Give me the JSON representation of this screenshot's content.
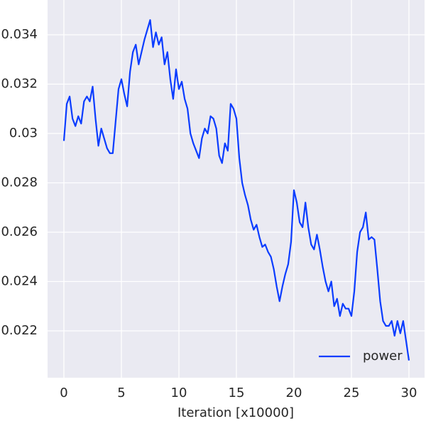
{
  "chart_data": {
    "type": "line",
    "xlabel": "Iteration [x10000]",
    "x": [
      0,
      0.25,
      0.5,
      0.75,
      1,
      1.25,
      1.5,
      1.75,
      2,
      2.25,
      2.5,
      2.75,
      3,
      3.25,
      3.5,
      3.75,
      4,
      4.25,
      4.5,
      4.75,
      5,
      5.25,
      5.5,
      5.75,
      6,
      6.25,
      6.5,
      6.75,
      7,
      7.25,
      7.5,
      7.75,
      8,
      8.25,
      8.5,
      8.75,
      9,
      9.25,
      9.5,
      9.75,
      10,
      10.25,
      10.5,
      10.75,
      11,
      11.25,
      11.5,
      11.75,
      12,
      12.25,
      12.5,
      12.75,
      13,
      13.25,
      13.5,
      13.75,
      14,
      14.25,
      14.5,
      14.75,
      15,
      15.25,
      15.5,
      15.75,
      16,
      16.25,
      16.5,
      16.75,
      17,
      17.25,
      17.5,
      17.75,
      18,
      18.25,
      18.5,
      18.75,
      19,
      19.25,
      19.5,
      19.75,
      20,
      20.25,
      20.5,
      20.75,
      21,
      21.25,
      21.5,
      21.75,
      22,
      22.25,
      22.5,
      22.75,
      23,
      23.25,
      23.5,
      23.75,
      24,
      24.25,
      24.5,
      24.75,
      25,
      25.25,
      25.5,
      25.75,
      26,
      26.25,
      26.5,
      26.75,
      27,
      27.25,
      27.5,
      27.75,
      28,
      28.25,
      28.5,
      28.75,
      29,
      29.25,
      29.5,
      29.75,
      30
    ],
    "series": [
      {
        "name": "power",
        "color": "#0a3cff",
        "values": [
          0.0297,
          0.0312,
          0.0315,
          0.0306,
          0.0303,
          0.0307,
          0.0304,
          0.0313,
          0.0315,
          0.0313,
          0.0319,
          0.0306,
          0.0295,
          0.0302,
          0.0298,
          0.0294,
          0.0292,
          0.0292,
          0.0305,
          0.0318,
          0.0322,
          0.0316,
          0.0311,
          0.0325,
          0.0333,
          0.0336,
          0.0328,
          0.0333,
          0.0338,
          0.0342,
          0.0346,
          0.0335,
          0.0341,
          0.0336,
          0.0339,
          0.0328,
          0.0333,
          0.0322,
          0.0314,
          0.0326,
          0.0318,
          0.0321,
          0.0314,
          0.031,
          0.03,
          0.0296,
          0.0293,
          0.029,
          0.0298,
          0.0302,
          0.03,
          0.0307,
          0.0306,
          0.0302,
          0.0291,
          0.0288,
          0.0296,
          0.0293,
          0.0312,
          0.031,
          0.0306,
          0.029,
          0.028,
          0.0275,
          0.0271,
          0.0265,
          0.0261,
          0.0263,
          0.0258,
          0.0254,
          0.0255,
          0.0252,
          0.025,
          0.0245,
          0.0238,
          0.0232,
          0.0238,
          0.0243,
          0.0247,
          0.0256,
          0.0277,
          0.0272,
          0.0264,
          0.0262,
          0.0272,
          0.0262,
          0.0255,
          0.0253,
          0.0259,
          0.0253,
          0.0246,
          0.024,
          0.0236,
          0.024,
          0.023,
          0.0233,
          0.0226,
          0.0231,
          0.0229,
          0.0229,
          0.0226,
          0.0236,
          0.0252,
          0.026,
          0.0262,
          0.0268,
          0.0257,
          0.0258,
          0.0257,
          0.0245,
          0.0232,
          0.0224,
          0.0222,
          0.0222,
          0.0224,
          0.0218,
          0.0224,
          0.0219,
          0.0224,
          0.0216,
          0.0208
        ]
      }
    ],
    "xlim": [
      -1.42,
      31.36
    ],
    "ylim": [
      0.0201,
      0.03541
    ],
    "xticks": [
      0,
      5,
      10,
      15,
      20,
      25,
      30
    ],
    "yticks": [
      0.022,
      0.024,
      0.026,
      0.028,
      0.03,
      0.032,
      0.034
    ],
    "grid": true,
    "legend": "lower right"
  }
}
